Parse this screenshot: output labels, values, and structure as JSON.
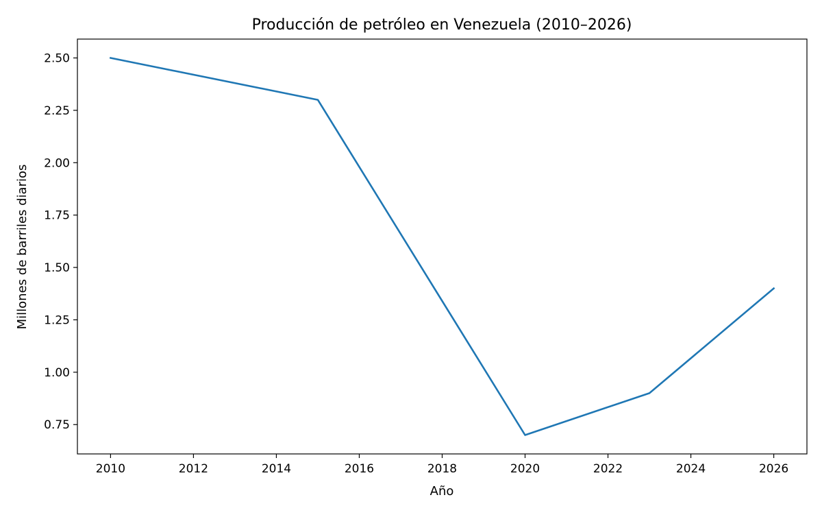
{
  "chart_data": {
    "type": "line",
    "title": "Producción de petróleo en Venezuela (2010–2026)",
    "xlabel": "Año",
    "ylabel": "Millones de barriles diarios",
    "x": [
      2010,
      2015,
      2020,
      2023,
      2026
    ],
    "series": [
      {
        "values": [
          2.5,
          2.3,
          0.7,
          0.9,
          1.4
        ],
        "color": "#1f77b4"
      }
    ],
    "xlim": [
      2009.2,
      2026.8
    ],
    "ylim": [
      0.61,
      2.59
    ],
    "xticks": [
      "2010",
      "2012",
      "2014",
      "2016",
      "2018",
      "2020",
      "2022",
      "2024",
      "2026"
    ],
    "yticks": [
      "0.75",
      "1.00",
      "1.25",
      "1.50",
      "1.75",
      "2.00",
      "2.25",
      "2.50"
    ],
    "grid": false,
    "legend": "none"
  }
}
